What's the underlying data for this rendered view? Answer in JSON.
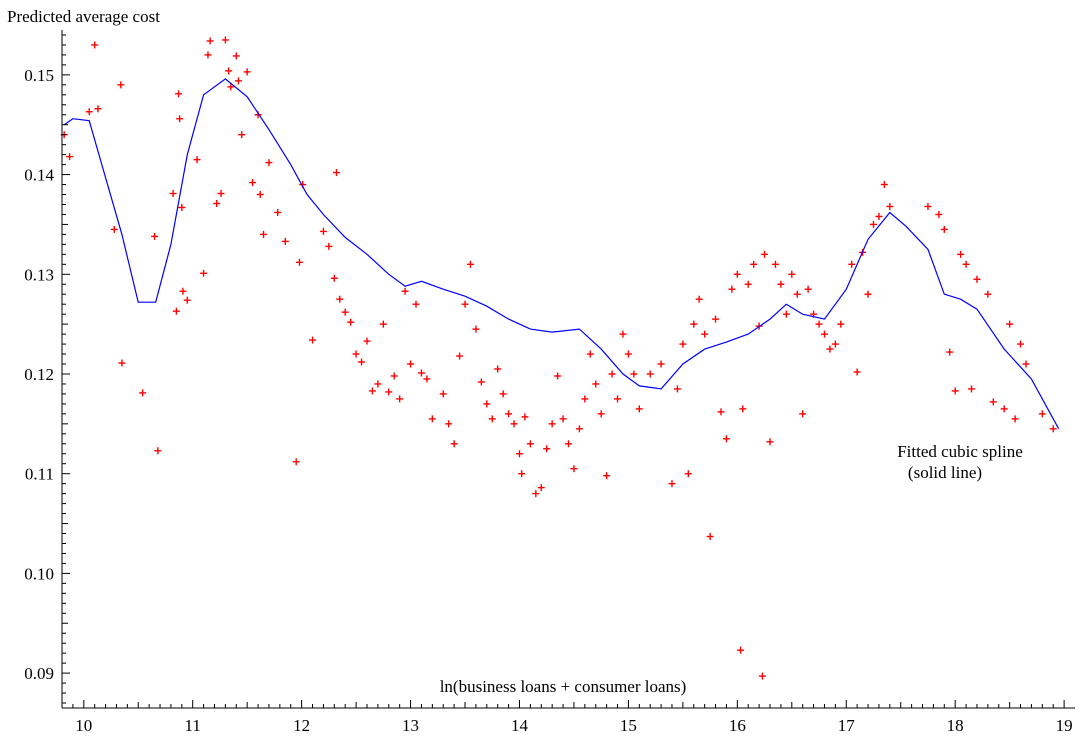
{
  "chart_data": {
    "type": "scatter",
    "ylabel": "Predicted average cost",
    "xlabel": "ln(business loans + consumer loans)",
    "annotation": [
      "Fitted cubic spline",
      "(solid line)"
    ],
    "xlim": [
      9.8,
      19.1
    ],
    "ylim": [
      0.0865,
      0.1545
    ],
    "xticks": [
      10,
      11,
      12,
      13,
      14,
      15,
      16,
      17,
      18,
      19
    ],
    "yticks": [
      0.09,
      0.1,
      0.11,
      0.12,
      0.13,
      0.14,
      0.15
    ],
    "ytick_labels": [
      "0.09",
      "0.10",
      "0.11",
      "0.12",
      "0.13",
      "0.14",
      "0.15"
    ],
    "grid": false,
    "colors": {
      "points": "#ff0000",
      "spline": "#0000ff",
      "axis": "#000000"
    },
    "series": [
      {
        "kind": "points",
        "points": [
          [
            9.82,
            0.144
          ],
          [
            9.87,
            0.1418
          ],
          [
            10.05,
            0.1463
          ],
          [
            10.1,
            0.153
          ],
          [
            10.13,
            0.1466
          ],
          [
            10.28,
            0.1345
          ],
          [
            10.34,
            0.149
          ],
          [
            10.35,
            0.1211
          ],
          [
            10.54,
            0.1181
          ],
          [
            10.65,
            0.1338
          ],
          [
            10.68,
            0.1123
          ],
          [
            10.82,
            0.1381
          ],
          [
            10.85,
            0.1263
          ],
          [
            10.87,
            0.1481
          ],
          [
            10.88,
            0.1456
          ],
          [
            10.9,
            0.1367
          ],
          [
            10.91,
            0.1283
          ],
          [
            10.95,
            0.1274
          ],
          [
            11.04,
            0.1415
          ],
          [
            11.1,
            0.1301
          ],
          [
            11.14,
            0.152
          ],
          [
            11.16,
            0.1534
          ],
          [
            11.22,
            0.1371
          ],
          [
            11.26,
            0.1381
          ],
          [
            11.3,
            0.1535
          ],
          [
            11.33,
            0.1504
          ],
          [
            11.35,
            0.1488
          ],
          [
            11.4,
            0.1519
          ],
          [
            11.42,
            0.1494
          ],
          [
            11.45,
            0.144
          ],
          [
            11.5,
            0.1503
          ],
          [
            11.55,
            0.1392
          ],
          [
            11.6,
            0.146
          ],
          [
            11.62,
            0.138
          ],
          [
            11.65,
            0.134
          ],
          [
            11.7,
            0.1412
          ],
          [
            11.78,
            0.1362
          ],
          [
            11.85,
            0.1333
          ],
          [
            11.95,
            0.1112
          ],
          [
            11.98,
            0.1312
          ],
          [
            12.01,
            0.139
          ],
          [
            12.1,
            0.1234
          ],
          [
            12.2,
            0.1343
          ],
          [
            12.25,
            0.1328
          ],
          [
            12.3,
            0.1296
          ],
          [
            12.32,
            0.1402
          ],
          [
            12.35,
            0.1275
          ],
          [
            12.4,
            0.1262
          ],
          [
            12.45,
            0.1252
          ],
          [
            12.5,
            0.122
          ],
          [
            12.55,
            0.1212
          ],
          [
            12.6,
            0.1233
          ],
          [
            12.65,
            0.1183
          ],
          [
            12.7,
            0.119
          ],
          [
            12.75,
            0.125
          ],
          [
            12.8,
            0.1182
          ],
          [
            12.85,
            0.1198
          ],
          [
            12.9,
            0.1175
          ],
          [
            12.95,
            0.1283
          ],
          [
            13.0,
            0.121
          ],
          [
            13.05,
            0.127
          ],
          [
            13.1,
            0.1201
          ],
          [
            13.15,
            0.1195
          ],
          [
            13.2,
            0.1155
          ],
          [
            13.3,
            0.118
          ],
          [
            13.35,
            0.115
          ],
          [
            13.4,
            0.113
          ],
          [
            13.45,
            0.1218
          ],
          [
            13.5,
            0.127
          ],
          [
            13.55,
            0.131
          ],
          [
            13.6,
            0.1245
          ],
          [
            13.65,
            0.1192
          ],
          [
            13.7,
            0.117
          ],
          [
            13.75,
            0.1155
          ],
          [
            13.8,
            0.1205
          ],
          [
            13.85,
            0.118
          ],
          [
            13.9,
            0.116
          ],
          [
            13.95,
            0.115
          ],
          [
            14.0,
            0.112
          ],
          [
            14.02,
            0.11
          ],
          [
            14.05,
            0.1157
          ],
          [
            14.1,
            0.113
          ],
          [
            14.15,
            0.108
          ],
          [
            14.2,
            0.1086
          ],
          [
            14.25,
            0.1125
          ],
          [
            14.3,
            0.115
          ],
          [
            14.35,
            0.1198
          ],
          [
            14.4,
            0.1155
          ],
          [
            14.45,
            0.113
          ],
          [
            14.5,
            0.1105
          ],
          [
            14.55,
            0.1145
          ],
          [
            14.6,
            0.1175
          ],
          [
            14.65,
            0.122
          ],
          [
            14.7,
            0.119
          ],
          [
            14.75,
            0.116
          ],
          [
            14.8,
            0.1098
          ],
          [
            14.85,
            0.12
          ],
          [
            14.9,
            0.1175
          ],
          [
            14.95,
            0.124
          ],
          [
            15.0,
            0.122
          ],
          [
            15.05,
            0.12
          ],
          [
            15.1,
            0.1165
          ],
          [
            15.2,
            0.12
          ],
          [
            15.3,
            0.121
          ],
          [
            15.4,
            0.109
          ],
          [
            15.45,
            0.1185
          ],
          [
            15.5,
            0.123
          ],
          [
            15.55,
            0.11
          ],
          [
            15.6,
            0.125
          ],
          [
            15.65,
            0.1275
          ],
          [
            15.7,
            0.124
          ],
          [
            15.75,
            0.1037
          ],
          [
            15.8,
            0.1255
          ],
          [
            15.85,
            0.1162
          ],
          [
            15.9,
            0.1135
          ],
          [
            15.95,
            0.1285
          ],
          [
            16.0,
            0.13
          ],
          [
            16.03,
            0.0923
          ],
          [
            16.05,
            0.1165
          ],
          [
            16.1,
            0.129
          ],
          [
            16.15,
            0.131
          ],
          [
            16.2,
            0.1248
          ],
          [
            16.23,
            0.0897
          ],
          [
            16.25,
            0.132
          ],
          [
            16.3,
            0.1132
          ],
          [
            16.35,
            0.131
          ],
          [
            16.4,
            0.129
          ],
          [
            16.45,
            0.126
          ],
          [
            16.5,
            0.13
          ],
          [
            16.55,
            0.128
          ],
          [
            16.6,
            0.116
          ],
          [
            16.65,
            0.1285
          ],
          [
            16.7,
            0.126
          ],
          [
            16.75,
            0.125
          ],
          [
            16.8,
            0.124
          ],
          [
            16.85,
            0.1225
          ],
          [
            16.9,
            0.123
          ],
          [
            16.95,
            0.125
          ],
          [
            17.05,
            0.131
          ],
          [
            17.1,
            0.1202
          ],
          [
            17.15,
            0.1322
          ],
          [
            17.2,
            0.128
          ],
          [
            17.25,
            0.135
          ],
          [
            17.3,
            0.1358
          ],
          [
            17.35,
            0.139
          ],
          [
            17.4,
            0.1368
          ],
          [
            17.75,
            0.1368
          ],
          [
            17.85,
            0.136
          ],
          [
            17.9,
            0.1345
          ],
          [
            17.95,
            0.1222
          ],
          [
            18.0,
            0.1183
          ],
          [
            18.05,
            0.132
          ],
          [
            18.1,
            0.131
          ],
          [
            18.15,
            0.1185
          ],
          [
            18.2,
            0.1295
          ],
          [
            18.3,
            0.128
          ],
          [
            18.35,
            0.1172
          ],
          [
            18.45,
            0.1165
          ],
          [
            18.5,
            0.125
          ],
          [
            18.55,
            0.1155
          ],
          [
            18.6,
            0.123
          ],
          [
            18.65,
            0.121
          ],
          [
            18.8,
            0.116
          ],
          [
            18.9,
            0.1145
          ]
        ]
      },
      {
        "kind": "line",
        "points": [
          [
            9.82,
            0.145
          ],
          [
            9.9,
            0.1456
          ],
          [
            10.05,
            0.1454
          ],
          [
            10.35,
            0.134
          ],
          [
            10.5,
            0.1272
          ],
          [
            10.66,
            0.1272
          ],
          [
            10.8,
            0.133
          ],
          [
            10.95,
            0.142
          ],
          [
            11.1,
            0.148
          ],
          [
            11.3,
            0.1496
          ],
          [
            11.5,
            0.1478
          ],
          [
            11.7,
            0.1445
          ],
          [
            11.9,
            0.141
          ],
          [
            12.05,
            0.138
          ],
          [
            12.2,
            0.136
          ],
          [
            12.4,
            0.1337
          ],
          [
            12.6,
            0.132
          ],
          [
            12.8,
            0.13
          ],
          [
            12.95,
            0.1288
          ],
          [
            13.1,
            0.1293
          ],
          [
            13.3,
            0.1285
          ],
          [
            13.5,
            0.1278
          ],
          [
            13.7,
            0.1268
          ],
          [
            13.9,
            0.1255
          ],
          [
            14.1,
            0.1245
          ],
          [
            14.3,
            0.1242
          ],
          [
            14.55,
            0.1245
          ],
          [
            14.75,
            0.1225
          ],
          [
            14.95,
            0.12
          ],
          [
            15.1,
            0.1188
          ],
          [
            15.3,
            0.1185
          ],
          [
            15.5,
            0.121
          ],
          [
            15.7,
            0.1225
          ],
          [
            15.9,
            0.1232
          ],
          [
            16.1,
            0.124
          ],
          [
            16.3,
            0.1255
          ],
          [
            16.45,
            0.127
          ],
          [
            16.6,
            0.126
          ],
          [
            16.8,
            0.1255
          ],
          [
            17.0,
            0.1285
          ],
          [
            17.2,
            0.1335
          ],
          [
            17.4,
            0.1362
          ],
          [
            17.55,
            0.1348
          ],
          [
            17.75,
            0.1325
          ],
          [
            17.9,
            0.128
          ],
          [
            18.05,
            0.1275
          ],
          [
            18.2,
            0.1265
          ],
          [
            18.45,
            0.1225
          ],
          [
            18.7,
            0.1195
          ],
          [
            18.95,
            0.1145
          ]
        ]
      }
    ]
  }
}
